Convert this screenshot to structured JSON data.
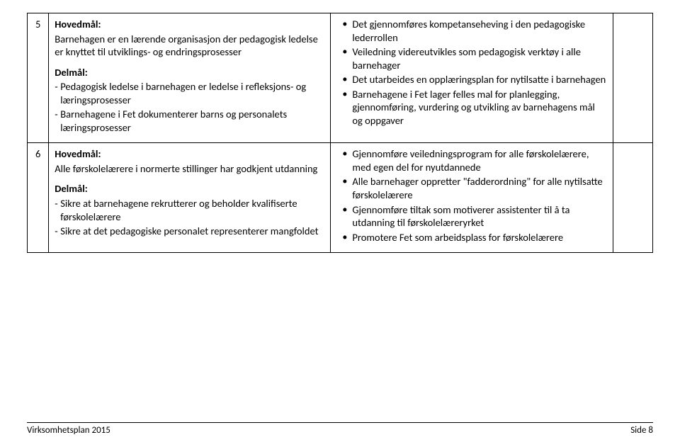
{
  "rows": [
    {
      "num": "5",
      "left": {
        "block1": {
          "heading": "Hovedmål:",
          "text": "Barnehagen er en lærende organisasjon der pedagogisk ledelse er knyttet til utviklings- og endringsprosesser"
        },
        "block2": {
          "heading": "Delmål:",
          "items": [
            "Pedagogisk ledelse i barnehagen er ledelse i refleksjons- og læringsprosesser",
            "Barnehagene i Fet dokumenterer barns og personalets læringsprosesser"
          ]
        }
      },
      "right": {
        "items": [
          "Det gjennomføres kompetanseheving i den pedagogiske lederrollen",
          "Veiledning videreutvikles som pedagogisk verktøy i alle barnehager",
          "Det utarbeides en opplæringsplan for nytilsatte i barnehagen",
          "Barnehagene i Fet lager felles mal for planlegging, gjennomføring, vurdering og utvikling av barnehagens mål og oppgaver"
        ]
      }
    },
    {
      "num": "6",
      "left": {
        "block1": {
          "heading": "Hovedmål:",
          "text": "Alle førskolelærere i normerte stillinger har godkjent utdanning"
        },
        "block2": {
          "heading": "Delmål:",
          "items": [
            "Sikre at barnehagene rekrutterer og beholder kvalifiserte førskolelærere",
            "Sikre at det pedagogiske personalet representerer mangfoldet"
          ]
        }
      },
      "right": {
        "items": [
          "Gjennomføre veiledningsprogram for alle førskolelærere, med egen del for nyutdannede",
          "Alle barnehager oppretter \"fadderordning\" for alle nytilsatte førskolelærere",
          "Gjennomføre tiltak som motiverer assistenter til å ta utdanning til førskolelæreryrket",
          "Promotere Fet som arbeidsplass for førskolelærere"
        ]
      }
    }
  ],
  "footer": {
    "left": "Virksomhetsplan 2015",
    "right": "Side 8"
  }
}
